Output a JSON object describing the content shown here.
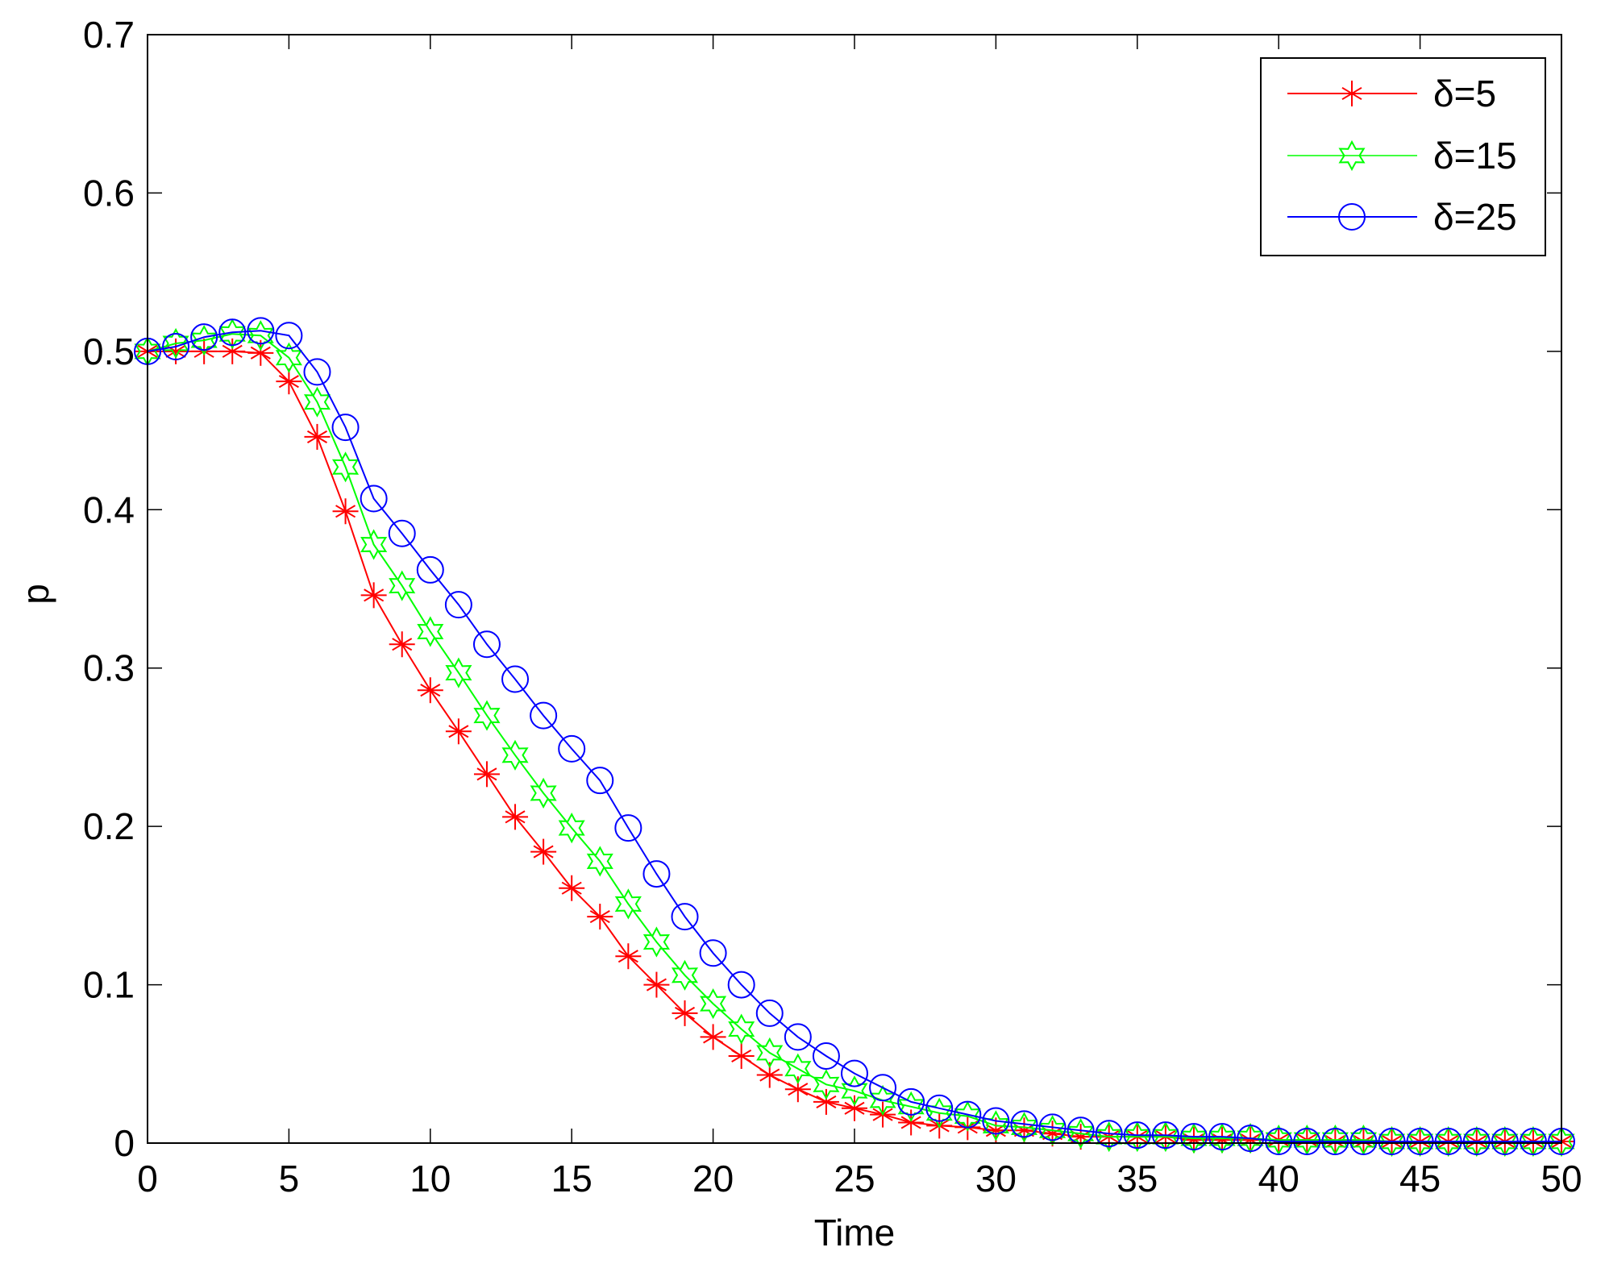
{
  "chart_data": {
    "type": "line",
    "title": "",
    "xlabel": "Time",
    "ylabel": "p",
    "xlim": [
      0,
      50
    ],
    "ylim": [
      0,
      0.7
    ],
    "xticks": [
      0,
      5,
      10,
      15,
      20,
      25,
      30,
      35,
      40,
      45,
      50
    ],
    "yticks": [
      0,
      0.1,
      0.2,
      0.3,
      0.4,
      0.5,
      0.6,
      0.7
    ],
    "xtick_labels": [
      "0",
      "5",
      "10",
      "15",
      "20",
      "25",
      "30",
      "35",
      "40",
      "45",
      "50"
    ],
    "ytick_labels": [
      "0",
      "0.1",
      "0.2",
      "0.3",
      "0.4",
      "0.5",
      "0.6",
      "0.7"
    ],
    "grid": false,
    "legend_position": "upper right",
    "x": [
      0,
      1,
      2,
      3,
      4,
      5,
      6,
      7,
      8,
      9,
      10,
      11,
      12,
      13,
      14,
      15,
      16,
      17,
      18,
      19,
      20,
      21,
      22,
      23,
      24,
      25,
      26,
      27,
      28,
      29,
      30,
      31,
      32,
      33,
      34,
      35,
      36,
      37,
      38,
      39,
      40,
      41,
      42,
      43,
      44,
      45,
      46,
      47,
      48,
      49,
      50
    ],
    "series": [
      {
        "name": "δ=5",
        "color": "#ff0000",
        "marker": "asterisk",
        "values": [
          0.5,
          0.5,
          0.5,
          0.5,
          0.499,
          0.481,
          0.446,
          0.399,
          0.346,
          0.315,
          0.286,
          0.26,
          0.233,
          0.206,
          0.184,
          0.161,
          0.143,
          0.118,
          0.1,
          0.082,
          0.067,
          0.055,
          0.043,
          0.034,
          0.026,
          0.022,
          0.018,
          0.013,
          0.011,
          0.01,
          0.008,
          0.008,
          0.006,
          0.004,
          0.004,
          0.004,
          0.004,
          0.002,
          0.002,
          0.002,
          0.002,
          0.002,
          0.001,
          0.001,
          0.001,
          0.001,
          0.001,
          0.001,
          0.001,
          0.001,
          0.001
        ]
      },
      {
        "name": "δ=15",
        "color": "#00ff00",
        "marker": "hexagram",
        "values": [
          0.5,
          0.505,
          0.507,
          0.511,
          0.51,
          0.496,
          0.468,
          0.427,
          0.378,
          0.352,
          0.323,
          0.297,
          0.27,
          0.245,
          0.221,
          0.199,
          0.178,
          0.151,
          0.127,
          0.106,
          0.088,
          0.072,
          0.057,
          0.047,
          0.037,
          0.033,
          0.027,
          0.023,
          0.019,
          0.017,
          0.011,
          0.01,
          0.008,
          0.006,
          0.004,
          0.004,
          0.004,
          0.003,
          0.003,
          0.003,
          0.002,
          0.002,
          0.002,
          0.002,
          0.001,
          0.001,
          0.001,
          0.001,
          0.001,
          0.001,
          0.001
        ]
      },
      {
        "name": "δ=25",
        "color": "#0000ff",
        "marker": "circle",
        "values": [
          0.5,
          0.503,
          0.509,
          0.512,
          0.513,
          0.51,
          0.487,
          0.452,
          0.407,
          0.385,
          0.362,
          0.34,
          0.315,
          0.293,
          0.27,
          0.249,
          0.229,
          0.199,
          0.17,
          0.143,
          0.12,
          0.1,
          0.082,
          0.067,
          0.055,
          0.044,
          0.035,
          0.026,
          0.022,
          0.018,
          0.014,
          0.012,
          0.01,
          0.008,
          0.006,
          0.005,
          0.005,
          0.004,
          0.004,
          0.003,
          0.001,
          0.001,
          0.001,
          0.001,
          0.001,
          0.001,
          0.001,
          0.001,
          0.001,
          0.001,
          0.001
        ]
      }
    ]
  },
  "legend": {
    "items": [
      {
        "label": "δ=5"
      },
      {
        "label": "δ=15"
      },
      {
        "label": "δ=25"
      }
    ]
  },
  "axes": {
    "xlabel": "Time",
    "ylabel": "p"
  }
}
